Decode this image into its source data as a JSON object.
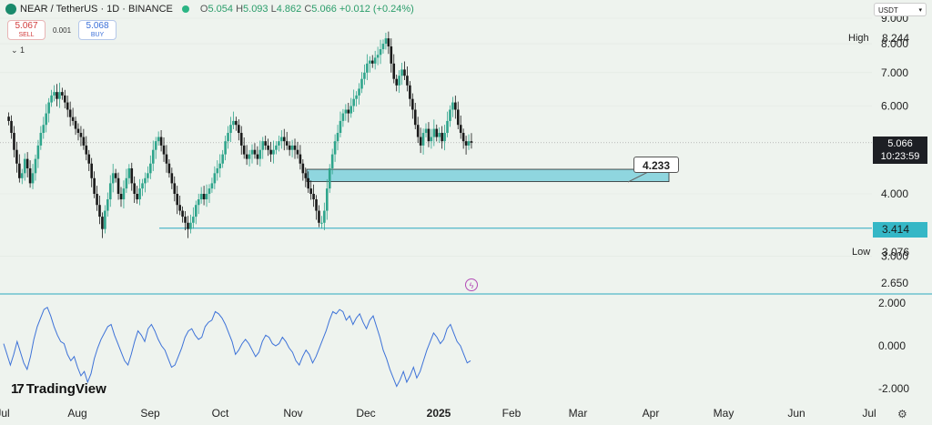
{
  "header": {
    "symbol": "NEAR / TetherUS · 1D · BINANCE",
    "ohlc": [
      {
        "k": "O",
        "v": "5.054"
      },
      {
        "k": "H",
        "v": "5.093"
      },
      {
        "k": "L",
        "v": "4.862"
      },
      {
        "k": "C",
        "v": "5.066"
      }
    ],
    "change": "+0.012 (+0.24%)"
  },
  "trade": {
    "sell_price": "5.067",
    "sell_label": "SELL",
    "spread": "0.001",
    "buy_price": "5.068",
    "buy_label": "BUY"
  },
  "indicators_collapsed": "1",
  "currency": "USDT",
  "high": {
    "label": "High",
    "value": "8.244"
  },
  "low": {
    "label": "Low",
    "value": "3.076"
  },
  "current": {
    "price": "5.066",
    "countdown": "10:23:59"
  },
  "hline_value": "3.414",
  "callout_value": "4.233",
  "brand": "TradingView",
  "colors": {
    "up": "#2fa58c",
    "down": "#1a1a1a",
    "zone": "#8fd6df",
    "line": "#2aaabf",
    "osc": "#3d72d8"
  },
  "chart_data": [
    {
      "type": "candlestick",
      "y_ticks": [
        "9.000",
        "8.000",
        "7.000",
        "6.000",
        "4.000",
        "3.000",
        "2.650"
      ],
      "x_ticks": [
        "Jul",
        "Aug",
        "Sep",
        "Oct",
        "Nov",
        "Dec",
        "2025",
        "Feb",
        "Mar",
        "Apr",
        "May",
        "Jun",
        "Jul"
      ],
      "x_range": [
        "2024-06-30",
        "2025-07-01"
      ],
      "y_scale": "log",
      "y_range": [
        2.56,
        9.3
      ],
      "series": [
        {
          "values": [
            5.6,
            5.3,
            4.9,
            4.6,
            4.3,
            4.4,
            4.7,
            4.5,
            4.2,
            4.4,
            4.7,
            5.0,
            5.3,
            5.5,
            5.8,
            6.1,
            6.3,
            6.4,
            6.2,
            6.4,
            6.3,
            6.1,
            5.9,
            5.7,
            5.6,
            5.4,
            5.3,
            5.2,
            5.0,
            4.8,
            4.6,
            4.3,
            4.0,
            3.8,
            3.6,
            3.4,
            3.7,
            3.9,
            4.2,
            4.4,
            4.3,
            4.0,
            3.9,
            4.1,
            4.3,
            4.5,
            4.2,
            4.0,
            3.9,
            4.1,
            4.2,
            4.3,
            4.4,
            4.6,
            4.9,
            5.1,
            5.2,
            5.0,
            4.8,
            4.6,
            4.4,
            4.2,
            4.0,
            3.8,
            3.7,
            3.6,
            3.5,
            3.4,
            3.5,
            3.6,
            3.8,
            3.9,
            4.0,
            3.9,
            4.0,
            4.1,
            4.2,
            4.4,
            4.5,
            4.6,
            4.8,
            5.1,
            5.3,
            5.5,
            5.6,
            5.5,
            5.3,
            5.0,
            4.8,
            4.7,
            4.8,
            4.9,
            4.8,
            4.7,
            4.9,
            5.1,
            5.0,
            4.9,
            4.8,
            4.9,
            5.0,
            5.1,
            5.2,
            5.1,
            5.0,
            4.9,
            5.0,
            4.9,
            4.8,
            4.6,
            4.4,
            4.3,
            4.1,
            4.0,
            3.9,
            3.7,
            3.5,
            3.5,
            3.7,
            4.1,
            4.5,
            4.8,
            5.1,
            5.3,
            5.6,
            5.8,
            5.9,
            5.8,
            6.0,
            6.2,
            6.3,
            6.5,
            6.8,
            7.0,
            7.3,
            7.4,
            7.3,
            7.5,
            7.6,
            7.8,
            8.0,
            8.2,
            7.9,
            7.3,
            6.8,
            6.6,
            6.9,
            7.1,
            6.9,
            6.6,
            6.2,
            5.9,
            5.5,
            5.2,
            5.0,
            5.3,
            5.4,
            5.1,
            5.2,
            5.4,
            5.2,
            5.3,
            5.1,
            5.3,
            5.6,
            5.9,
            6.1,
            5.9,
            5.5,
            5.3,
            5.1,
            5.0,
            5.1,
            5.066
          ]
        }
      ]
    },
    {
      "type": "line",
      "y_ticks": [
        "2.000",
        "0.000",
        "-2.000"
      ],
      "y_range": [
        -2.3,
        2.5
      ],
      "series": [
        {
          "values": [
            0.1,
            -0.4,
            -0.9,
            -0.4,
            0.2,
            -0.3,
            -0.8,
            -1.1,
            -0.5,
            0.3,
            0.9,
            1.3,
            1.7,
            1.8,
            1.4,
            0.9,
            0.5,
            0.2,
            0.1,
            -0.4,
            -0.7,
            -0.5,
            -1.0,
            -1.4,
            -1.2,
            -1.7,
            -1.3,
            -0.6,
            -0.1,
            0.3,
            0.6,
            0.9,
            1.0,
            0.5,
            0.1,
            -0.3,
            -0.7,
            -0.9,
            -0.4,
            0.2,
            0.7,
            0.5,
            0.2,
            0.8,
            1.0,
            0.7,
            0.3,
            0.0,
            -0.2,
            -0.6,
            -1.0,
            -0.9,
            -0.5,
            -0.1,
            0.4,
            0.7,
            0.8,
            0.5,
            0.3,
            0.4,
            0.9,
            1.1,
            1.2,
            1.6,
            1.5,
            1.3,
            1.0,
            0.6,
            0.2,
            -0.4,
            -0.2,
            0.1,
            0.3,
            0.1,
            -0.2,
            -0.5,
            -0.3,
            0.2,
            0.5,
            0.4,
            0.1,
            0.0,
            0.1,
            0.4,
            0.2,
            -0.1,
            -0.3,
            -0.7,
            -0.9,
            -0.5,
            -0.2,
            -0.4,
            -0.8,
            -0.5,
            -0.1,
            0.3,
            0.7,
            1.2,
            1.6,
            1.5,
            1.7,
            1.6,
            1.2,
            1.4,
            1.0,
            1.3,
            1.5,
            1.1,
            0.8,
            1.2,
            1.4,
            0.9,
            0.4,
            -0.2,
            -0.6,
            -1.1,
            -1.5,
            -1.9,
            -1.6,
            -1.2,
            -1.7,
            -1.4,
            -1.0,
            -1.5,
            -1.2,
            -0.7,
            -0.2,
            0.2,
            0.6,
            0.4,
            0.1,
            0.3,
            0.8,
            1.0,
            0.6,
            0.2,
            0.0,
            -0.4,
            -0.8,
            -0.7
          ]
        }
      ]
    }
  ]
}
